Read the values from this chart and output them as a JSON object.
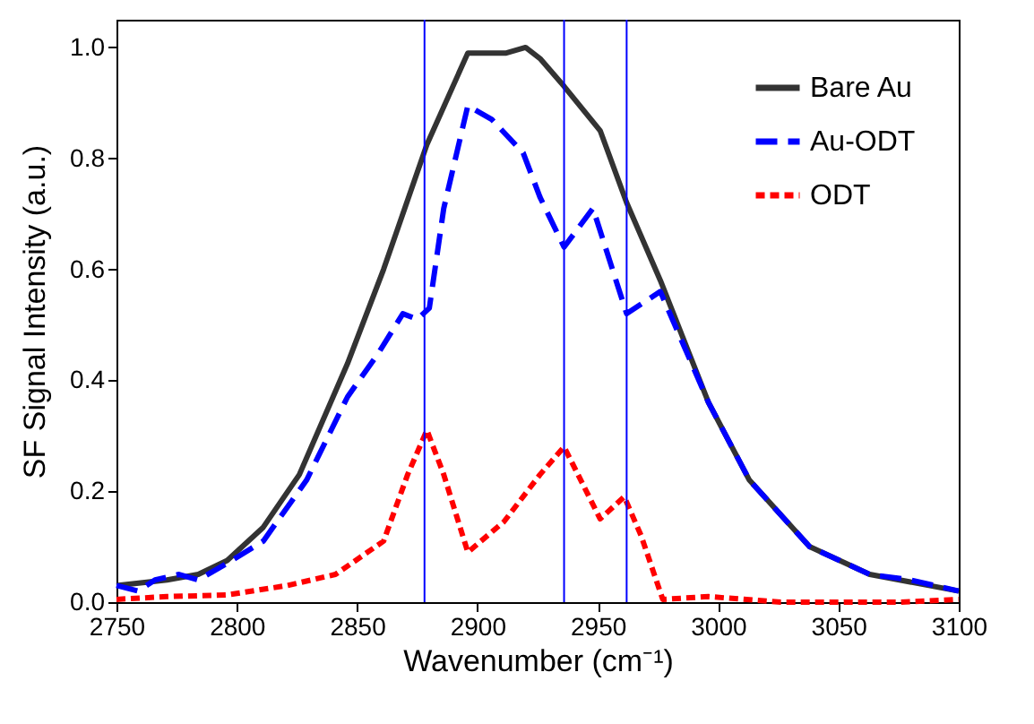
{
  "chart_data": {
    "type": "line",
    "xlabel": "Wavenumber (cm⁻¹)",
    "ylabel": "SF Signal Intensity (a.u.)",
    "xlim": [
      2750,
      3100
    ],
    "xticks": [
      2750,
      2800,
      2850,
      2900,
      2950,
      3000,
      3050,
      3100
    ],
    "ylim": [
      0,
      1.05
    ],
    "yticks": [
      {
        "value": 0,
        "label": "0.0"
      },
      {
        "value": 0.2,
        "label": "0.2"
      },
      {
        "value": 0.4,
        "label": "0.4"
      },
      {
        "value": 0.6,
        "label": "0.6"
      },
      {
        "value": 0.8,
        "label": "0.8"
      },
      {
        "value": 1,
        "label": "1.0"
      }
    ],
    "grid": false,
    "legend": "top right",
    "series": [
      {
        "name": "Bare Au",
        "color": "#333333",
        "line_style": "solid",
        "x": [
          2750,
          2771,
          2784,
          2796,
          2811,
          2826,
          2846,
          2861,
          2879,
          2896,
          2912,
          2920,
          2926,
          2936,
          2951,
          2962,
          2976,
          2996,
          3013,
          3038,
          3063,
          3100
        ],
        "values": [
          0.03,
          0.04,
          0.05,
          0.075,
          0.135,
          0.23,
          0.43,
          0.6,
          0.825,
          0.99,
          0.99,
          1.0,
          0.98,
          0.93,
          0.85,
          0.72,
          0.58,
          0.36,
          0.22,
          0.1,
          0.05,
          0.02
        ]
      },
      {
        "name": "Au-ODT",
        "color": "#0000ff",
        "line_style": "dashed",
        "x": [
          2750,
          2759,
          2766,
          2776,
          2784,
          2796,
          2811,
          2829,
          2846,
          2859,
          2869,
          2875,
          2880,
          2886,
          2896,
          2906,
          2919,
          2926,
          2936,
          2948,
          2962,
          2976,
          2996,
          3013,
          3038,
          3063,
          3080,
          3100
        ],
        "values": [
          0.03,
          0.02,
          0.04,
          0.05,
          0.04,
          0.07,
          0.11,
          0.22,
          0.37,
          0.45,
          0.52,
          0.51,
          0.53,
          0.71,
          0.895,
          0.87,
          0.81,
          0.73,
          0.64,
          0.71,
          0.52,
          0.56,
          0.36,
          0.22,
          0.1,
          0.05,
          0.04,
          0.02
        ]
      },
      {
        "name": "ODT",
        "color": "#ff0000",
        "line_style": "dotted",
        "x": [
          2750,
          2771,
          2796,
          2821,
          2841,
          2861,
          2871,
          2879,
          2886,
          2896,
          2911,
          2926,
          2936,
          2951,
          2961,
          2968,
          2977,
          2996,
          3026,
          3076,
          3100
        ],
        "values": [
          0.005,
          0.01,
          0.013,
          0.03,
          0.05,
          0.11,
          0.23,
          0.31,
          0.23,
          0.09,
          0.145,
          0.23,
          0.28,
          0.15,
          0.19,
          0.12,
          0.005,
          0.01,
          0.0,
          0.0,
          0.005
        ]
      }
    ],
    "ref_lines": [
      {
        "axis": "x",
        "value": 2878,
        "color": "#0000ff"
      },
      {
        "axis": "x",
        "value": 2936,
        "color": "#0000ff"
      },
      {
        "axis": "x",
        "value": 2962,
        "color": "#0000ff"
      }
    ]
  }
}
